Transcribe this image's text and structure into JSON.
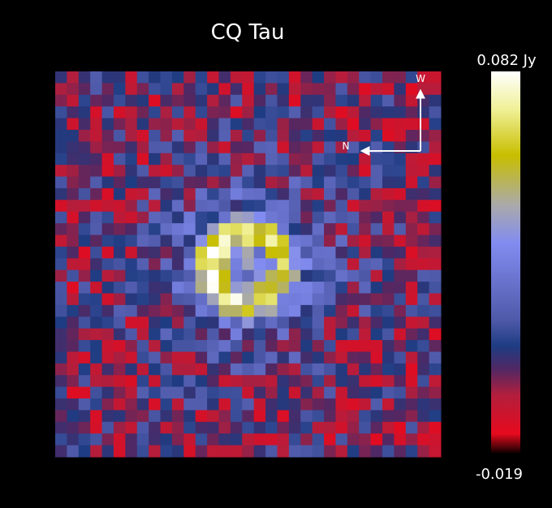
{
  "title": "CQ Tau",
  "colorbar": {
    "max_label": "0.082 Jy",
    "min_label": "-0.019"
  },
  "compass": {
    "west": "W",
    "north": "N"
  }
}
